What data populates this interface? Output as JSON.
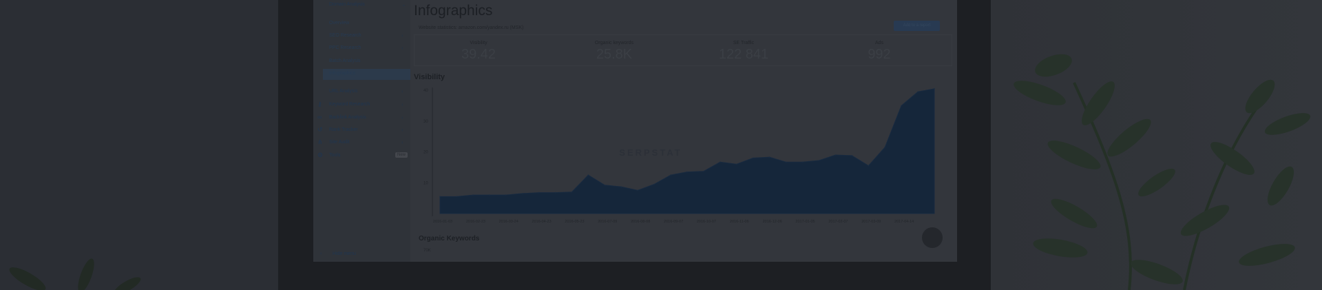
{
  "sidebar": {
    "items": [
      {
        "label": "Domain Analysis",
        "chevron": "⌄"
      },
      {
        "label": "Overview"
      },
      {
        "label": "SEO Research",
        "chevron": "‹"
      },
      {
        "label": "PPC Research",
        "chevron": "‹"
      },
      {
        "label": "Batch Analysis"
      },
      {
        "label": "Infographics",
        "active": true
      },
      {
        "label": "URL Analysis",
        "chevron": "‹"
      },
      {
        "label": "Keyword Research",
        "chevron": "‹",
        "icon": "key-icon"
      },
      {
        "label": "Backlink Analysis",
        "chevron": "‹",
        "icon": "link-icon"
      },
      {
        "label": "Rank Tracker",
        "chevron": "‹",
        "icon": "history-icon"
      },
      {
        "label": "Site Audit",
        "chevron": "‹",
        "icon": "sitemap-icon"
      },
      {
        "label": "Tools",
        "badge": "New",
        "icon": "gear-icon"
      }
    ],
    "hide_menu": "Hide menu"
  },
  "main": {
    "title": "Infographics",
    "subtitle": "Website statistics: amazon.com/yandex.ru (MSK)",
    "add_button": "Add to a report",
    "stats": [
      {
        "label": "Visibility",
        "value": "39.42"
      },
      {
        "label": "Organic keywords",
        "value": "25.8K"
      },
      {
        "label": "SE Traffic",
        "value": "122 841"
      },
      {
        "label": "Ads",
        "value": "992"
      }
    ],
    "visibility_title": "Visibility",
    "organic_title": "Organic Keywords",
    "organic_first_tick": "70K",
    "watermark": "SERPSTAT"
  },
  "chart_data": {
    "type": "area",
    "title": "Visibility",
    "ylim": [
      0,
      40
    ],
    "yticks": [
      "10",
      "20",
      "30",
      "40"
    ],
    "xticks": [
      "2016-01-03",
      "2016-02-23",
      "2016-03-24",
      "2016-04-23",
      "2016-05-23",
      "2016-07-09",
      "2016-08-08",
      "2016-09-07",
      "2016-10-07",
      "2016-11-06",
      "2016-12-06",
      "2017-01-05",
      "2017-02-07",
      "2017-03-09",
      "2017-04-14"
    ],
    "values": [
      5.5,
      5.5,
      6,
      6,
      6,
      6.5,
      6.8,
      6.8,
      7,
      12.5,
      9.2,
      8.7,
      7.5,
      9.5,
      12.5,
      13.5,
      13.7,
      16.7,
      16,
      18,
      18.3,
      16.7,
      16.7,
      17.2,
      19,
      18.8,
      15.5,
      21.5,
      35,
      39.5,
      40.5
    ],
    "color": "#15263a"
  }
}
